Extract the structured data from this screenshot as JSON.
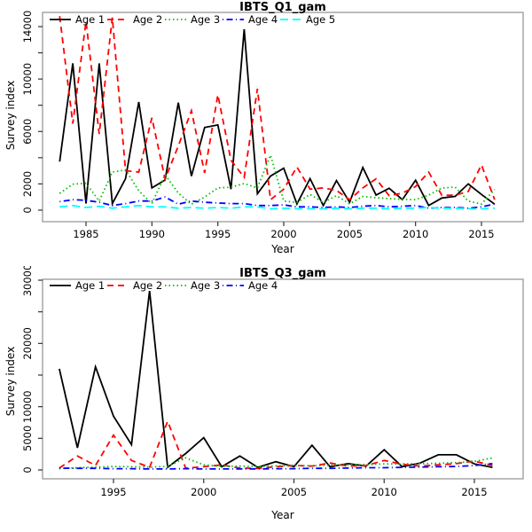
{
  "figure": {
    "background": "#ffffff"
  },
  "chart_data": [
    {
      "type": "line",
      "title": "IBTS_Q1_gam",
      "xlabel": "Year",
      "ylabel": "Survey index",
      "xlim": [
        1983,
        2016
      ],
      "ylim": [
        0,
        14800
      ],
      "x_ticks": [
        1985,
        1990,
        1995,
        2000,
        2005,
        2010,
        2015
      ],
      "y_ticks_labeled": [
        0,
        2000,
        6000,
        10000,
        14000
      ],
      "y_ticks_minor": [
        4000,
        8000,
        12000
      ],
      "grid": false,
      "legend_position": "top-left-horizontal",
      "x": [
        1983,
        1984,
        1985,
        1986,
        1987,
        1988,
        1989,
        1990,
        1991,
        1992,
        1993,
        1994,
        1995,
        1996,
        1997,
        1998,
        1999,
        2000,
        2001,
        2002,
        2003,
        2004,
        2005,
        2006,
        2007,
        2008,
        2009,
        2010,
        2011,
        2012,
        2013,
        2014,
        2015,
        2016
      ],
      "series": [
        {
          "name": "Age 1",
          "color": "#000000",
          "dash": "solid",
          "values": [
            3700,
            11200,
            500,
            11200,
            500,
            2400,
            8250,
            1700,
            2300,
            8200,
            2600,
            6300,
            6500,
            1600,
            13800,
            1250,
            2600,
            3200,
            475,
            2400,
            350,
            2250,
            600,
            3250,
            1150,
            1670,
            800,
            2280,
            350,
            925,
            1050,
            2000,
            1200,
            450
          ]
        },
        {
          "name": "Age 2",
          "color": "#ff0000",
          "dash": "dashed",
          "values": [
            14800,
            6600,
            14400,
            5800,
            14700,
            3000,
            2900,
            7050,
            2370,
            4900,
            7580,
            2840,
            8800,
            3800,
            2500,
            9260,
            800,
            1600,
            3290,
            1600,
            1700,
            1500,
            800,
            1700,
            2390,
            1100,
            1300,
            1800,
            2900,
            1125,
            1140,
            1420,
            3450,
            800
          ]
        },
        {
          "name": "Age 3",
          "color": "#00c000",
          "dash": "dotted",
          "values": [
            1280,
            1985,
            2050,
            700,
            2900,
            3070,
            1480,
            500,
            2700,
            1300,
            450,
            1000,
            1700,
            1750,
            2030,
            1690,
            4190,
            700,
            590,
            1200,
            590,
            1100,
            480,
            1050,
            950,
            880,
            820,
            800,
            1150,
            1690,
            1760,
            690,
            465,
            1580
          ]
        },
        {
          "name": "Age 4",
          "color": "#0000ff",
          "dash": "dashdot",
          "values": [
            650,
            800,
            750,
            600,
            350,
            500,
            700,
            700,
            1000,
            450,
            700,
            600,
            550,
            500,
            500,
            350,
            350,
            400,
            250,
            250,
            200,
            250,
            200,
            300,
            350,
            250,
            300,
            350,
            150,
            200,
            200,
            150,
            250,
            465
          ]
        },
        {
          "name": "Age 5",
          "color": "#00ffff",
          "dash": "longdash",
          "values": [
            250,
            350,
            200,
            300,
            150,
            250,
            350,
            250,
            250,
            150,
            200,
            150,
            200,
            150,
            250,
            250,
            100,
            150,
            100,
            100,
            100,
            150,
            100,
            150,
            150,
            100,
            150,
            150,
            200,
            150,
            150,
            100,
            100,
            150
          ]
        }
      ]
    },
    {
      "type": "line",
      "title": "IBTS_Q3_gam",
      "xlabel": "Year",
      "ylabel": "Survey index",
      "xlim": [
        1992,
        2016
      ],
      "ylim": [
        0,
        30000
      ],
      "x_ticks": [
        1995,
        2000,
        2005,
        2010,
        2015
      ],
      "y_ticks_labeled": [
        0,
        5000,
        10000,
        20000,
        30000
      ],
      "y_ticks_minor": [
        15000,
        25000
      ],
      "grid": false,
      "legend_position": "top-left-horizontal",
      "x": [
        1992,
        1993,
        1994,
        1995,
        1996,
        1997,
        1998,
        1999,
        2000,
        2001,
        2002,
        2003,
        2004,
        2005,
        2006,
        2007,
        2008,
        2009,
        2010,
        2011,
        2012,
        2013,
        2014,
        2015,
        2016
      ],
      "series": [
        {
          "name": "Age 1",
          "color": "#000000",
          "dash": "solid",
          "values": [
            16000,
            3500,
            16300,
            8500,
            4000,
            28300,
            400,
            2600,
            5100,
            500,
            2200,
            400,
            1300,
            500,
            3900,
            500,
            1000,
            600,
            3200,
            500,
            1100,
            2400,
            2400,
            950,
            400
          ]
        },
        {
          "name": "Age 2",
          "color": "#ff0000",
          "dash": "dashed",
          "values": [
            300,
            2200,
            700,
            5500,
            1500,
            400,
            7700,
            300,
            500,
            800,
            300,
            250,
            500,
            700,
            600,
            1100,
            600,
            700,
            1500,
            900,
            600,
            800,
            1000,
            1400,
            700
          ]
        },
        {
          "name": "Age 3",
          "color": "#00c000",
          "dash": "dotted",
          "values": [
            200,
            350,
            450,
            550,
            500,
            450,
            550,
            1900,
            800,
            550,
            600,
            550,
            650,
            700,
            650,
            750,
            800,
            850,
            950,
            950,
            1000,
            1050,
            1150,
            1350,
            1900
          ]
        },
        {
          "name": "Age 4",
          "color": "#0000ff",
          "dash": "dashdot",
          "values": [
            300,
            250,
            250,
            200,
            200,
            150,
            150,
            200,
            150,
            150,
            150,
            150,
            200,
            200,
            250,
            250,
            300,
            350,
            350,
            400,
            450,
            500,
            550,
            700,
            1000
          ]
        }
      ]
    }
  ]
}
